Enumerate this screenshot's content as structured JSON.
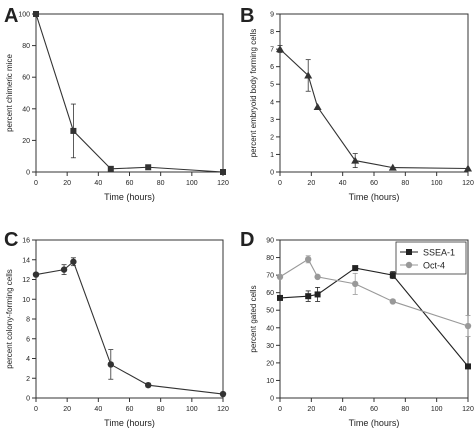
{
  "chart_data": [
    {
      "panel": "A",
      "type": "line",
      "xlabel": "Time (hours)",
      "ylabel": "percent chimeric mice",
      "xlim": [
        0,
        120
      ],
      "ylim": [
        0,
        100
      ],
      "xticks": [
        0,
        20,
        40,
        60,
        80,
        100,
        120
      ],
      "yticks": [
        0,
        20,
        40,
        60,
        80,
        100
      ],
      "series": [
        {
          "marker": "square",
          "color": "#333333",
          "x": [
            0,
            24,
            48,
            72,
            120
          ],
          "y": [
            100,
            26,
            2,
            3,
            0
          ],
          "err": [
            0,
            17,
            0,
            0,
            0
          ]
        }
      ]
    },
    {
      "panel": "B",
      "type": "line",
      "xlabel": "Time (hours)",
      "ylabel": "percent embryoid body forming cells",
      "xlim": [
        0,
        120
      ],
      "ylim": [
        0,
        9
      ],
      "xticks": [
        0,
        20,
        40,
        60,
        80,
        100,
        120
      ],
      "yticks": [
        0,
        1,
        2,
        3,
        4,
        5,
        6,
        7,
        8,
        9
      ],
      "series": [
        {
          "marker": "triangle",
          "color": "#333333",
          "x": [
            0,
            18,
            24,
            48,
            72,
            120
          ],
          "y": [
            7.0,
            5.5,
            3.7,
            0.65,
            0.25,
            0.2
          ],
          "err": [
            0.2,
            0.9,
            0,
            0.4,
            0,
            0
          ]
        }
      ]
    },
    {
      "panel": "C",
      "type": "line",
      "xlabel": "Time (hours)",
      "ylabel": "percent colony-forming cells",
      "xlim": [
        0,
        120
      ],
      "ylim": [
        0,
        16
      ],
      "xticks": [
        0,
        20,
        40,
        60,
        80,
        100,
        120
      ],
      "yticks": [
        0,
        2,
        4,
        6,
        8,
        10,
        12,
        14,
        16
      ],
      "series": [
        {
          "marker": "circle",
          "color": "#333333",
          "x": [
            0,
            18,
            24,
            48,
            72,
            120
          ],
          "y": [
            12.5,
            13.0,
            13.8,
            3.4,
            1.3,
            0.4
          ],
          "err": [
            0,
            0.5,
            0.4,
            1.5,
            0.2,
            0
          ]
        }
      ]
    },
    {
      "panel": "D",
      "type": "line",
      "xlabel": "Time (hours)",
      "ylabel": "percent gated cells",
      "xlim": [
        0,
        120
      ],
      "ylim": [
        0,
        90
      ],
      "xticks": [
        0,
        20,
        40,
        60,
        80,
        100,
        120
      ],
      "yticks": [
        0,
        10,
        20,
        30,
        40,
        50,
        60,
        70,
        80,
        90
      ],
      "legend": "top-right",
      "series": [
        {
          "name": "SSEA-1",
          "marker": "square",
          "color": "#222222",
          "x": [
            0,
            18,
            24,
            48,
            72,
            120
          ],
          "y": [
            57,
            58,
            59,
            74,
            70,
            18
          ],
          "err": [
            0,
            3,
            4,
            0,
            2,
            0
          ]
        },
        {
          "name": "Oct-4",
          "marker": "circle",
          "color": "#999999",
          "x": [
            0,
            18,
            24,
            48,
            72,
            120
          ],
          "y": [
            69,
            79,
            69,
            65,
            55,
            41
          ],
          "err": [
            0,
            2,
            0,
            6,
            0,
            6
          ]
        }
      ]
    }
  ]
}
